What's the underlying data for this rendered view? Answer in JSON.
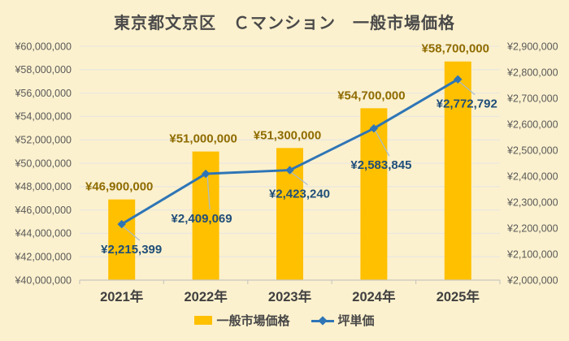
{
  "chart_data": {
    "type": "combo-bar-line",
    "title": "東京都文京区　Ｃマンション　一般市場価格",
    "categories": [
      "2021年",
      "2022年",
      "2023年",
      "2024年",
      "2025年"
    ],
    "series": [
      {
        "name": "一般市場価格",
        "type": "bar",
        "axis": "left",
        "color": "#FFC000",
        "values": [
          46900000,
          51000000,
          51300000,
          54700000,
          58700000
        ],
        "data_labels": [
          "¥46,900,000",
          "¥51,000,000",
          "¥51,300,000",
          "¥54,700,000",
          "¥58,700,000"
        ]
      },
      {
        "name": "坪単価",
        "type": "line",
        "axis": "right",
        "color": "#2E75B6",
        "marker": "diamond",
        "values": [
          2215399,
          2409069,
          2423240,
          2583845,
          2772792
        ],
        "data_labels": [
          "¥2,215,399",
          "¥2,409,069",
          "¥2,423,240",
          "¥2,583,845",
          "¥2,772,792"
        ]
      }
    ],
    "axes": {
      "left": {
        "min": 40000000,
        "max": 60000000,
        "step": 2000000,
        "tick_labels": [
          "¥60,000,000",
          "¥58,000,000",
          "¥56,000,000",
          "¥54,000,000",
          "¥52,000,000",
          "¥50,000,000",
          "¥48,000,000",
          "¥46,000,000",
          "¥44,000,000",
          "¥42,000,000",
          "¥40,000,000"
        ]
      },
      "right": {
        "min": 2000000,
        "max": 2900000,
        "step": 100000,
        "tick_labels": [
          "¥2,900,000",
          "¥2,800,000",
          "¥2,700,000",
          "¥2,600,000",
          "¥2,500,000",
          "¥2,400,000",
          "¥2,300,000",
          "¥2,200,000",
          "¥2,100,000",
          "¥2,000,000"
        ]
      }
    },
    "grid": true,
    "legend_position": "bottom"
  },
  "colors": {
    "background": "#FCF1CE",
    "bar": "#FFC000",
    "line": "#2E75B6",
    "bar_label": "#8F6C00",
    "line_label": "#1F4E79",
    "title": "#4A4A4A",
    "axis_text": "#595959",
    "x_label_text": "#3F3F3F",
    "gridline": "#EAE7DE",
    "axis_line": "#CBC8BF",
    "leader_line": "#A3BBD4"
  }
}
